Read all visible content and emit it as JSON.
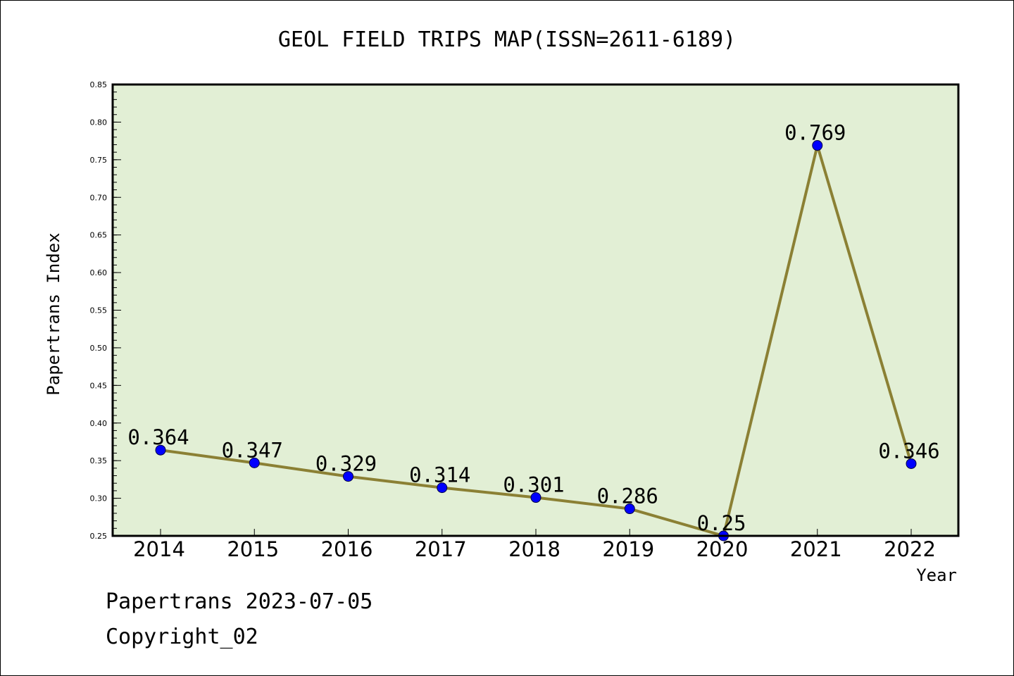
{
  "chart_data": {
    "type": "line",
    "title": "GEOL FIELD TRIPS MAP(ISSN=2611-6189)",
    "xlabel": "Year",
    "ylabel": "Papertrans Index",
    "categories": [
      "2014",
      "2015",
      "2016",
      "2017",
      "2018",
      "2019",
      "2020",
      "2021",
      "2022"
    ],
    "series": [
      {
        "values": [
          0.364,
          0.347,
          0.329,
          0.314,
          0.301,
          0.286,
          0.25,
          0.769,
          0.346
        ],
        "labels": [
          "0.364",
          "0.347",
          "0.329",
          "0.314",
          "0.301",
          "0.286",
          "0.25",
          "0.769",
          "0.346"
        ],
        "line_color": "#8b8034",
        "marker_color": "#0000ff"
      }
    ],
    "ylim": [
      0.25,
      0.85
    ],
    "yticks": [
      "0.25",
      "0.30",
      "0.35",
      "0.40",
      "0.45",
      "0.50",
      "0.55",
      "0.60",
      "0.65",
      "0.70",
      "0.75",
      "0.80",
      "0.85"
    ],
    "plot_background": "#e2efd5",
    "grid": false
  },
  "footer": {
    "line1": "Papertrans 2023-07-05",
    "line2": "Copyright_02"
  }
}
